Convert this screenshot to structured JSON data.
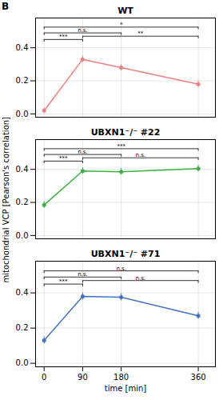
{
  "title": "B",
  "chart_data": [
    {
      "type": "line",
      "title": "WT",
      "x": [
        0,
        90,
        180,
        360
      ],
      "series": [
        {
          "color": "#f08080",
          "values": [
            0.02,
            0.33,
            0.28,
            0.18
          ],
          "error": [
            0.015,
            0.02,
            0.02,
            0.02
          ]
        }
      ],
      "annotations": [
        {
          "x1": 0,
          "x2": 360,
          "y": 0.525,
          "text": "*"
        },
        {
          "x1": 0,
          "x2": 180,
          "y": 0.49,
          "text": "n.s."
        },
        {
          "x1": 90,
          "x2": 360,
          "y": 0.47,
          "text": "**"
        },
        {
          "x1": 0,
          "x2": 90,
          "y": 0.45,
          "text": "***"
        }
      ],
      "xlim": [
        -20,
        400
      ],
      "ylim": [
        -0.02,
        0.58
      ],
      "xticks": [
        0,
        90,
        180,
        360
      ],
      "yticks": [
        {
          "value": 0.0,
          "label": "0.0"
        },
        0.2,
        0.4
      ],
      "grid": true,
      "marker": "circle",
      "line_style": "solid",
      "tick_labels": "y"
    },
    {
      "type": "line",
      "title": "UBXN1⁻/⁻ #22",
      "ylabel": "mitochondrial VCP [Pearson's correlation]",
      "x": [
        0,
        90,
        180,
        360
      ],
      "series": [
        {
          "color": "#3cb043",
          "values": [
            0.185,
            0.39,
            0.385,
            0.405
          ],
          "error": [
            0.02,
            0.02,
            0.02,
            0.02
          ]
        }
      ],
      "annotations": [
        {
          "x1": 0,
          "x2": 360,
          "y": 0.525,
          "text": "***"
        },
        {
          "x1": 0,
          "x2": 180,
          "y": 0.49,
          "text": "n.s."
        },
        {
          "x1": 90,
          "x2": 360,
          "y": 0.47,
          "text": "n.s."
        },
        {
          "x1": 0,
          "x2": 90,
          "y": 0.45,
          "text": "***"
        }
      ],
      "xlim": [
        -20,
        400
      ],
      "ylim": [
        -0.02,
        0.58
      ],
      "xticks": [
        0,
        90,
        180,
        360
      ],
      "yticks": [
        {
          "value": 0.0,
          "label": "0.0"
        },
        0.2,
        0.4
      ],
      "grid": true,
      "marker": "circle",
      "line_style": "solid",
      "tick_labels": "y"
    },
    {
      "type": "line",
      "title": "UBXN1⁻/⁻ #71",
      "xlabel": "time [min]",
      "x": [
        0,
        90,
        180,
        360
      ],
      "series": [
        {
          "color": "#4472c4",
          "values": [
            0.13,
            0.38,
            0.375,
            0.27
          ],
          "error": [
            0.02,
            0.02,
            0.02,
            0.02
          ]
        }
      ],
      "annotations": [
        {
          "x1": 0,
          "x2": 360,
          "y": 0.525,
          "text": "n.s."
        },
        {
          "x1": 0,
          "x2": 180,
          "y": 0.49,
          "text": "n.s."
        },
        {
          "x1": 90,
          "x2": 360,
          "y": 0.47,
          "text": "n.s."
        },
        {
          "x1": 0,
          "x2": 90,
          "y": 0.45,
          "text": "***"
        }
      ],
      "xlim": [
        -20,
        400
      ],
      "ylim": [
        -0.02,
        0.58
      ],
      "xticks": [
        0,
        90,
        180,
        360
      ],
      "yticks": [
        {
          "value": 0.0,
          "label": "0.0"
        },
        0.2,
        0.4
      ],
      "grid": true,
      "marker": "circle",
      "line_style": "solid"
    }
  ]
}
